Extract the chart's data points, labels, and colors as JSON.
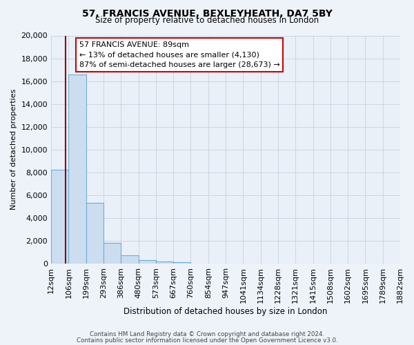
{
  "title": "57, FRANCIS AVENUE, BEXLEYHEATH, DA7 5BY",
  "subtitle": "Size of property relative to detached houses in London",
  "xlabel": "Distribution of detached houses by size in London",
  "ylabel": "Number of detached properties",
  "bin_edges": [
    12,
    106,
    199,
    293,
    386,
    480,
    573,
    667,
    760,
    854,
    947,
    1041,
    1134,
    1228,
    1321,
    1415,
    1508,
    1602,
    1695,
    1789,
    1882
  ],
  "bin_labels": [
    "12sqm",
    "106sqm",
    "199sqm",
    "293sqm",
    "386sqm",
    "480sqm",
    "573sqm",
    "667sqm",
    "760sqm",
    "854sqm",
    "947sqm",
    "1041sqm",
    "1134sqm",
    "1228sqm",
    "1321sqm",
    "1415sqm",
    "1508sqm",
    "1602sqm",
    "1695sqm",
    "1789sqm",
    "1882sqm"
  ],
  "bar_heights": [
    8200,
    16600,
    5300,
    1800,
    750,
    300,
    200,
    100,
    0,
    0,
    0,
    0,
    0,
    0,
    0,
    0,
    0,
    0,
    0,
    0
  ],
  "bar_color": "#ccddf0",
  "bar_edge_color": "#6aaed6",
  "property_line_x": 89,
  "property_line_color": "#8b0000",
  "annotation_line1": "57 FRANCIS AVENUE: 89sqm",
  "annotation_line2": "← 13% of detached houses are smaller (4,130)",
  "annotation_line3": "87% of semi-detached houses are larger (28,673) →",
  "ylim": [
    0,
    20000
  ],
  "yticks": [
    0,
    2000,
    4000,
    6000,
    8000,
    10000,
    12000,
    14000,
    16000,
    18000,
    20000
  ],
  "footer_line1": "Contains HM Land Registry data © Crown copyright and database right 2024.",
  "footer_line2": "Contains public sector information licensed under the Open Government Licence v3.0.",
  "bg_color": "#eef3fa",
  "plot_bg_color": "#eaf0f8"
}
